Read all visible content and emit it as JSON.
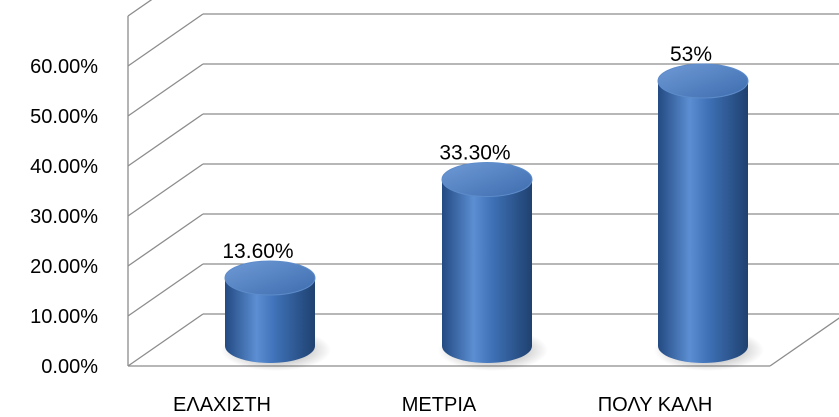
{
  "chart_data": {
    "type": "bar",
    "style": "3d-cylinder",
    "categories": [
      "ΕΛΑΧΙΣΤΗ",
      "ΜΕΤΡΙΑ",
      "ΠΟΛΥ ΚΑΛΗ"
    ],
    "values": [
      13.6,
      33.3,
      53
    ],
    "data_labels": [
      "13.60%",
      "33.30%",
      "53%"
    ],
    "ylim": [
      0,
      60
    ],
    "yticks": [
      "0.00%",
      "10.00%",
      "20.00%",
      "30.00%",
      "40.00%",
      "50.00%",
      "60.00%"
    ],
    "grid": true,
    "legend": "none",
    "colors": {
      "bar": "#3f72b8",
      "bar_dark": "#234a82",
      "bar_light": "#7aa3dc",
      "grid": "#8c8c8c"
    }
  }
}
